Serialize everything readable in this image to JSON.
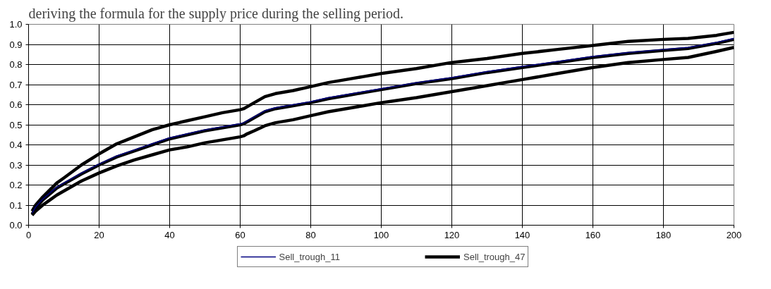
{
  "chart_data": {
    "type": "line",
    "annotations": [
      "deriving the formula for the supply price during the selling period."
    ],
    "x": [
      1,
      2,
      4,
      6,
      8,
      10,
      15,
      20,
      25,
      30,
      35,
      40,
      45,
      50,
      55,
      60,
      61,
      62,
      64,
      67,
      70,
      75,
      80,
      85,
      90,
      95,
      100,
      110,
      120,
      130,
      140,
      150,
      160,
      170,
      180,
      187,
      195,
      200
    ],
    "series": [
      {
        "color": "#000000",
        "values": [
          0.07,
          0.1,
          0.14,
          0.175,
          0.21,
          0.235,
          0.3,
          0.355,
          0.405,
          0.44,
          0.475,
          0.5,
          0.52,
          0.54,
          0.56,
          0.575,
          0.58,
          0.59,
          0.61,
          0.64,
          0.655,
          0.67,
          0.69,
          0.71,
          0.725,
          0.74,
          0.755,
          0.78,
          0.81,
          0.83,
          0.855,
          0.875,
          0.895,
          0.915,
          0.925,
          0.93,
          0.945,
          0.96
        ]
      },
      {
        "color": "#000000",
        "values": [
          0.05,
          0.07,
          0.1,
          0.125,
          0.15,
          0.17,
          0.22,
          0.26,
          0.295,
          0.325,
          0.35,
          0.375,
          0.39,
          0.41,
          0.425,
          0.44,
          0.445,
          0.455,
          0.47,
          0.495,
          0.51,
          0.525,
          0.545,
          0.565,
          0.58,
          0.595,
          0.61,
          0.635,
          0.665,
          0.695,
          0.725,
          0.755,
          0.785,
          0.81,
          0.825,
          0.835,
          0.865,
          0.885
        ]
      },
      {
        "name": "Sell_trough_47",
        "color": "#000000",
        "values": [
          0.055,
          0.085,
          0.125,
          0.155,
          0.185,
          0.205,
          0.255,
          0.3,
          0.34,
          0.37,
          0.4,
          0.43,
          0.45,
          0.47,
          0.485,
          0.5,
          0.505,
          0.515,
          0.535,
          0.565,
          0.58,
          0.595,
          0.61,
          0.63,
          0.645,
          0.66,
          0.675,
          0.705,
          0.73,
          0.76,
          0.785,
          0.81,
          0.835,
          0.855,
          0.87,
          0.88,
          0.905,
          0.925
        ]
      },
      {
        "name": "Sell_trough_11",
        "color": "#000080",
        "values": [
          0.06,
          0.09,
          0.13,
          0.16,
          0.19,
          0.21,
          0.26,
          0.305,
          0.345,
          0.375,
          0.405,
          0.435,
          0.455,
          0.475,
          0.49,
          0.505,
          0.51,
          0.52,
          0.54,
          0.57,
          0.585,
          0.6,
          0.615,
          0.635,
          0.65,
          0.665,
          0.68,
          0.71,
          0.735,
          0.765,
          0.79,
          0.815,
          0.84,
          0.86,
          0.875,
          0.885,
          0.91,
          0.93
        ]
      }
    ],
    "xlim": [
      0,
      200
    ],
    "ylim": [
      0,
      1
    ],
    "xticks": [
      0,
      20,
      40,
      60,
      80,
      100,
      120,
      140,
      160,
      180,
      200
    ],
    "yticks": [
      {
        "value": 0,
        "label": "0.0"
      },
      {
        "value": 0.1,
        "label": "0.1"
      },
      {
        "value": 0.2,
        "label": "0.2"
      },
      {
        "value": 0.3,
        "label": "0.3"
      },
      {
        "value": 0.4,
        "label": "0.4"
      },
      {
        "value": 0.5,
        "label": "0.5"
      },
      {
        "value": 0.6,
        "label": "0.6"
      },
      {
        "value": 0.7,
        "label": "0.7"
      },
      {
        "value": 0.8,
        "label": "0.8"
      },
      {
        "value": 0.9,
        "label": "0.9"
      },
      {
        "value": 1,
        "label": "1.0"
      }
    ],
    "grid": true,
    "legend": "bottom",
    "marker": "none",
    "line_style": "solid"
  }
}
